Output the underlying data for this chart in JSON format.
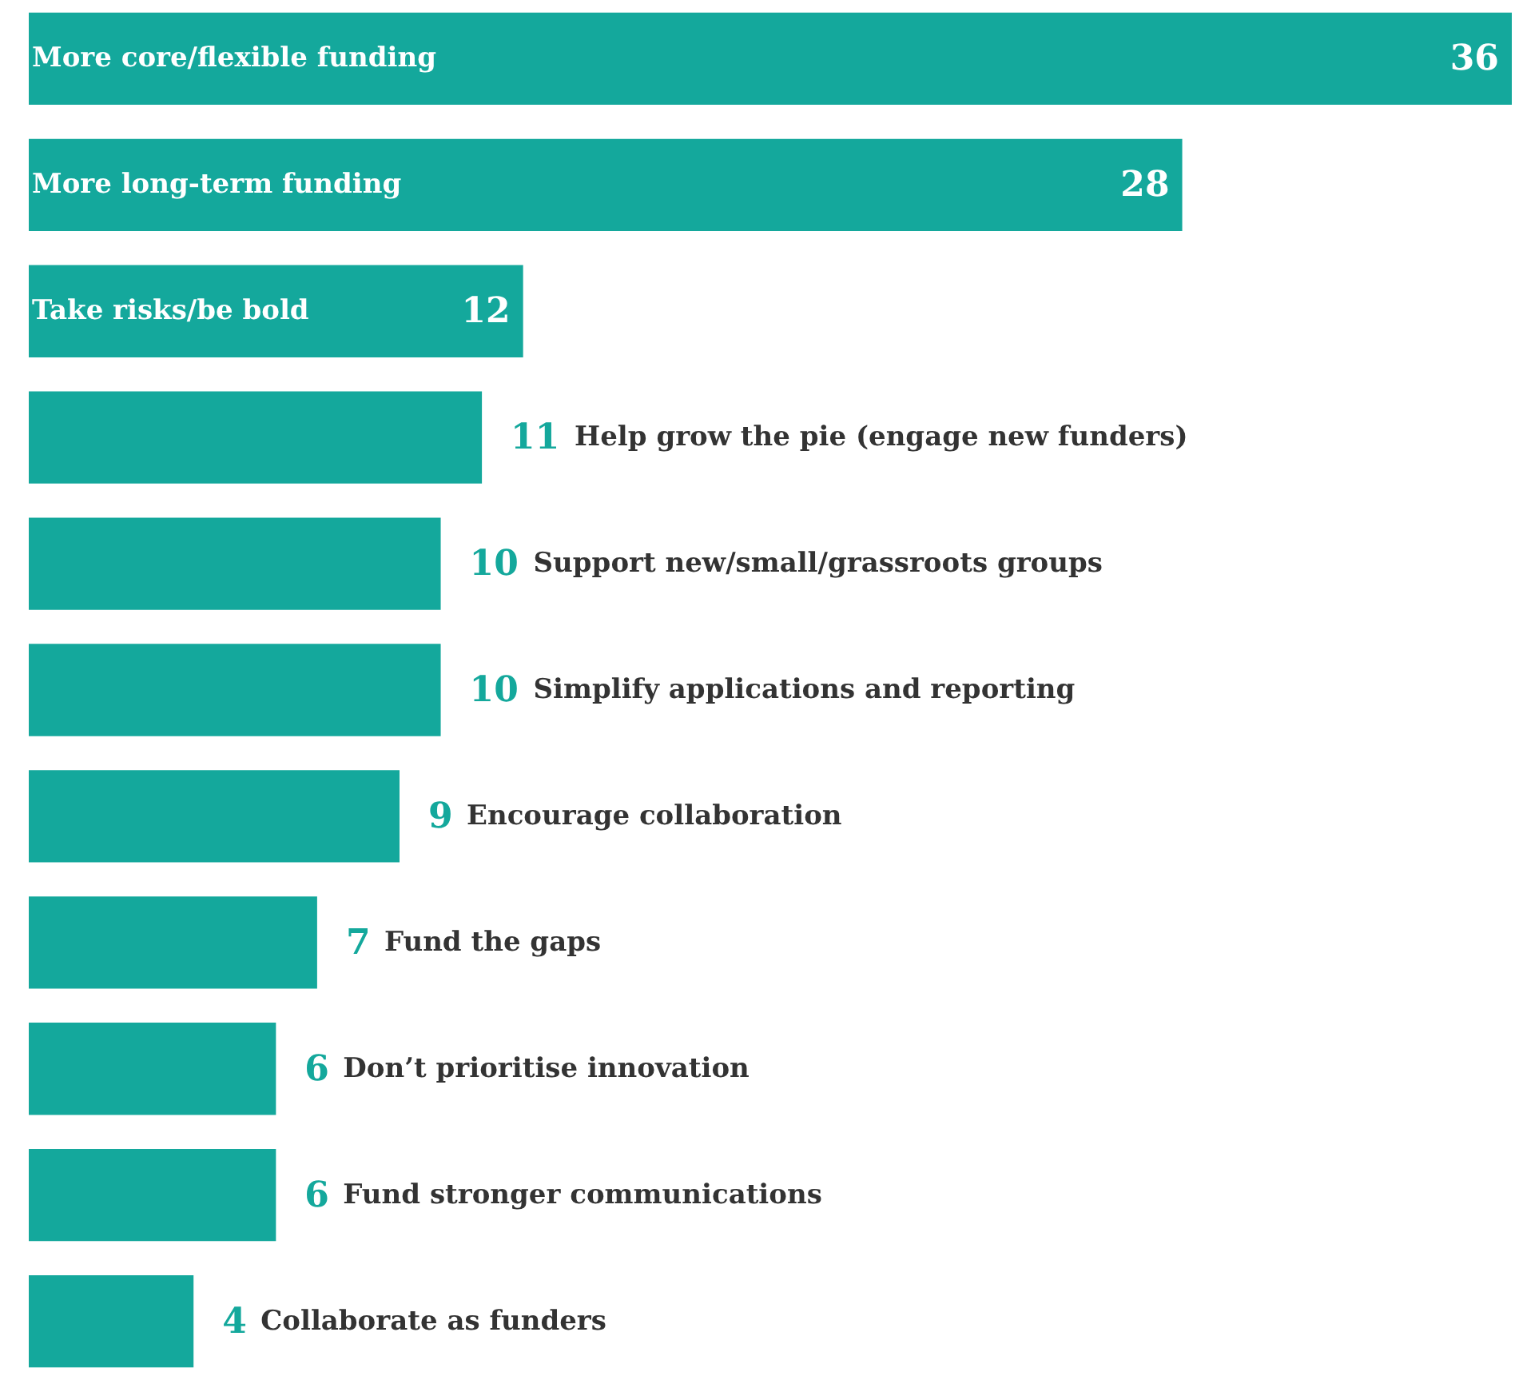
{
  "chart_data": {
    "type": "bar",
    "orientation": "horizontal",
    "data_labels": true,
    "color": "#14a89c",
    "categories": [
      "More core/flexible funding",
      "More long-term funding",
      "Take risks/be bold",
      "Help grow the pie (engage new funders)",
      "Support new/small/grassroots groups",
      "Simplify applications and reporting",
      "Encourage collaboration",
      "Fund the gaps",
      "Don’t prioritise innovation",
      "Fund stronger communications",
      "Collaborate as funders"
    ],
    "values": [
      36,
      28,
      12,
      11,
      10,
      10,
      9,
      7,
      6,
      6,
      4
    ]
  }
}
